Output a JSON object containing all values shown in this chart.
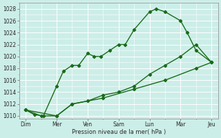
{
  "title": "",
  "xlabel": "Pression niveau de la mer( hPa )",
  "ylabel": "",
  "background_color": "#cceee8",
  "grid_color": "#ffffff",
  "line_color": "#1a6b1a",
  "ylim": [
    1009.5,
    1029
  ],
  "yticks": [
    1010,
    1012,
    1014,
    1016,
    1018,
    1020,
    1022,
    1024,
    1026,
    1028
  ],
  "xtick_labels": [
    "Dim",
    "Mer",
    "Ven",
    "Sam",
    "Lun",
    "Mar",
    "Jeu"
  ],
  "xtick_positions": [
    0,
    14,
    28,
    42,
    56,
    70,
    84
  ],
  "xlim": [
    -3,
    87
  ],
  "series1": {
    "x": [
      0,
      4,
      8,
      14,
      17,
      21,
      24,
      28,
      31,
      34,
      38,
      42,
      45,
      49,
      56,
      59,
      63,
      70,
      73,
      77,
      84
    ],
    "y": [
      1011,
      1010.2,
      1010,
      1015,
      1017.5,
      1018.5,
      1018.5,
      1020.5,
      1020,
      1020,
      1021,
      1022,
      1022,
      1024.5,
      1027.5,
      1028,
      1027.5,
      1026,
      1024,
      1021,
      1019
    ]
  },
  "series2": {
    "x": [
      0,
      7,
      14,
      21,
      28,
      35,
      42,
      49,
      56,
      63,
      70,
      77,
      84
    ],
    "y": [
      1011,
      1010,
      1010,
      1012,
      1012.5,
      1013.5,
      1014,
      1015,
      1017,
      1018.5,
      1020,
      1022,
      1019
    ]
  },
  "series3": {
    "x": [
      0,
      14,
      21,
      35,
      49,
      63,
      77,
      84
    ],
    "y": [
      1011,
      1010,
      1012,
      1013,
      1014.5,
      1016,
      1018,
      1019
    ]
  }
}
